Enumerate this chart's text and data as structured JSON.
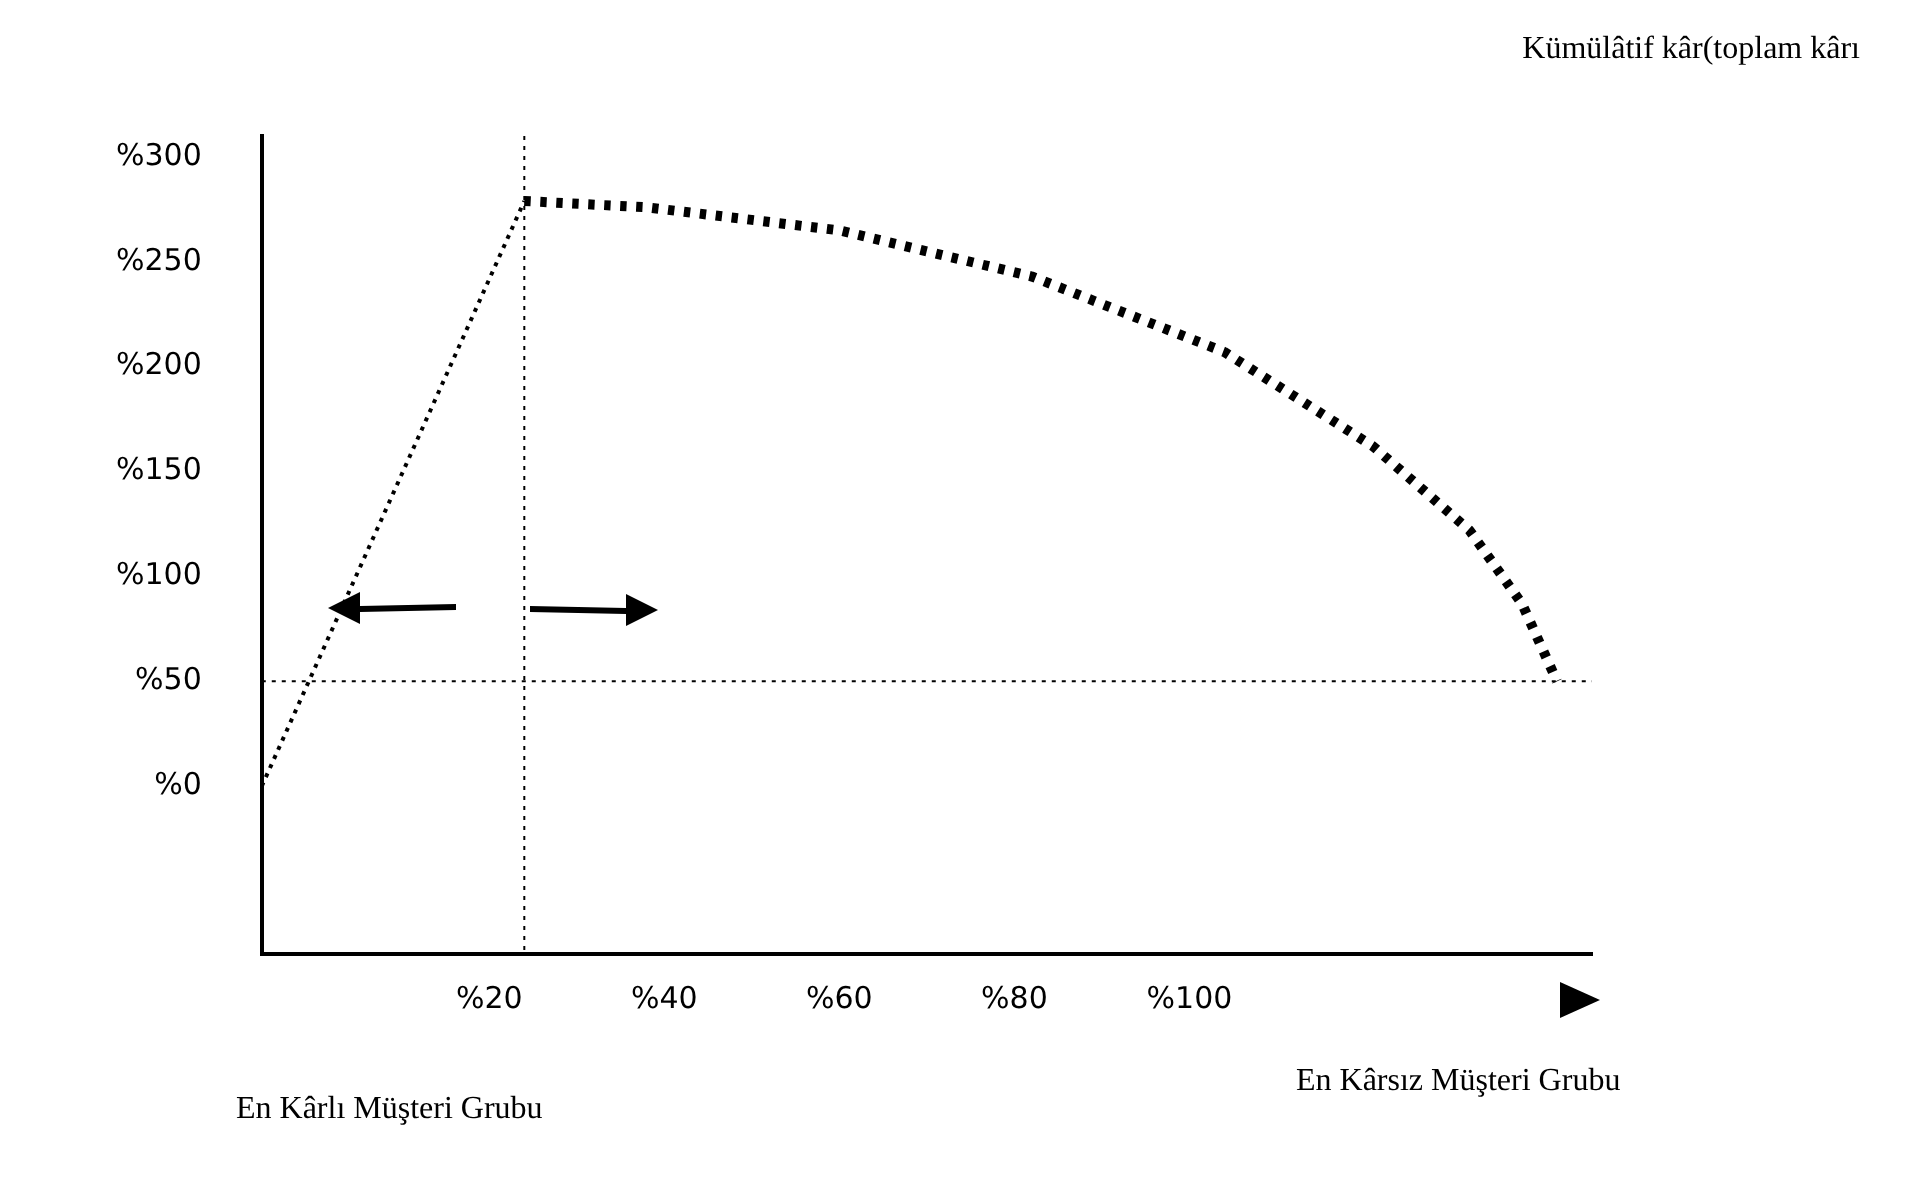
{
  "chart_data": {
    "type": "line",
    "annotations": [
      "Kümülâtif kâr(toplam kârı",
      "En Kârlı Müşteri Grubu",
      "En Kârsız Müşteri Grubu"
    ],
    "series": [
      {
        "color": "#000000",
        "line_style": "dotted",
        "x": [
          -6,
          24
        ],
        "values": [
          0,
          279
        ]
      },
      {
        "color": "#000000",
        "line_style": "dotted",
        "x": [
          24,
          38,
          60,
          82,
          104,
          121,
          132,
          138,
          142
        ],
        "values": [
          279,
          276,
          265,
          243,
          207,
          162,
          122,
          87,
          50
        ]
      }
    ],
    "xlim": [
      -6,
      146
    ],
    "ylim": [
      -80,
      310
    ],
    "xticks": [
      {
        "value": 20,
        "label": "%20"
      },
      {
        "value": 40,
        "label": "%40"
      },
      {
        "value": 60,
        "label": "%60"
      },
      {
        "value": 80,
        "label": "%80"
      },
      {
        "value": 100,
        "label": "%100"
      }
    ],
    "yticks": [
      {
        "value": 0,
        "label": "%0"
      },
      {
        "value": 50,
        "label": "%50"
      },
      {
        "value": 100,
        "label": "%100"
      },
      {
        "value": 150,
        "label": "%150"
      },
      {
        "value": 200,
        "label": "%200"
      },
      {
        "value": 250,
        "label": "%250"
      },
      {
        "value": 300,
        "label": "%300"
      }
    ],
    "ref_lines": [
      {
        "axis": "y",
        "value": 50,
        "color": "#000000",
        "line_style": "dotted"
      },
      {
        "axis": "x",
        "value": 24,
        "color": "#000000",
        "line_style": "dotted"
      }
    ],
    "grid": false,
    "legend": false,
    "marker": "none"
  }
}
